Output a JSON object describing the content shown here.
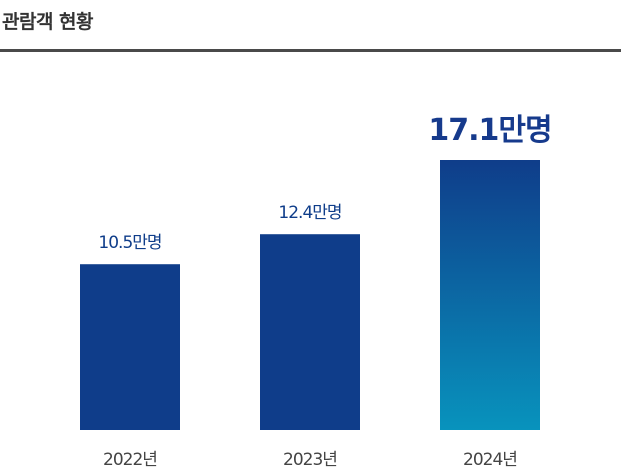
{
  "title": "관람객 현황",
  "chart_data": {
    "type": "bar",
    "title": "관람객 현황",
    "categories": [
      "2022년",
      "2023년",
      "2024년"
    ],
    "values": [
      10.5,
      12.4,
      17.1
    ],
    "labels": [
      "10.5만명",
      "12.4만명",
      "17.1만명"
    ],
    "unit": "만명",
    "highlight_index": 2,
    "ylim": [
      0,
      18
    ],
    "grid": false,
    "colors": {
      "bar": "#0f3d8a",
      "highlight_top": "#0f3d8a",
      "highlight_bottom": "#0893bd",
      "label": "#0f3d8a",
      "highlight_label": "#163a8c",
      "category": "#444444"
    }
  }
}
